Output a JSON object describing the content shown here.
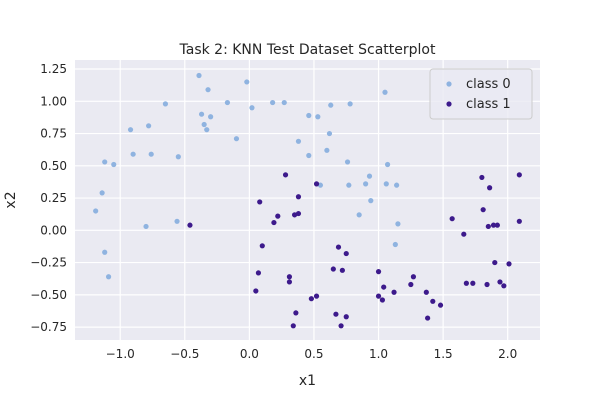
{
  "chart_data": {
    "type": "scatter",
    "title": "Task 2: KNN Test Dataset Scatterplot",
    "xlabel": "x1",
    "ylabel": "x2",
    "xlim": [
      -1.35,
      2.25
    ],
    "ylim": [
      -0.85,
      1.32
    ],
    "xticks": [
      -1.0,
      -0.5,
      0.0,
      0.5,
      1.0,
      1.5,
      2.0
    ],
    "xtick_labels": [
      "−1.0",
      "−0.5",
      "0.0",
      "0.5",
      "1.0",
      "1.5",
      "2.0"
    ],
    "yticks": [
      -0.75,
      -0.5,
      -0.25,
      0.0,
      0.25,
      0.5,
      0.75,
      1.0,
      1.25
    ],
    "ytick_labels": [
      "−0.75",
      "−0.50",
      "−0.25",
      "0.00",
      "0.25",
      "0.50",
      "0.75",
      "1.00",
      "1.25"
    ],
    "grid": true,
    "legend_position": "top-right",
    "background_color": "#eaeaf2",
    "grid_color": "#ffffff",
    "series": [
      {
        "name": "class 0",
        "color": "#8fb3e0",
        "points": [
          [
            -1.19,
            0.15
          ],
          [
            -1.14,
            0.29
          ],
          [
            -1.12,
            0.53
          ],
          [
            -1.12,
            -0.17
          ],
          [
            -1.09,
            -0.36
          ],
          [
            -1.05,
            0.51
          ],
          [
            -0.92,
            0.78
          ],
          [
            -0.9,
            0.59
          ],
          [
            -0.8,
            0.03
          ],
          [
            -0.78,
            0.81
          ],
          [
            -0.76,
            0.59
          ],
          [
            -0.65,
            0.98
          ],
          [
            -0.56,
            0.07
          ],
          [
            -0.55,
            0.57
          ],
          [
            -0.39,
            1.2
          ],
          [
            -0.37,
            0.9
          ],
          [
            -0.35,
            0.82
          ],
          [
            -0.33,
            0.78
          ],
          [
            -0.32,
            1.09
          ],
          [
            -0.3,
            0.88
          ],
          [
            -0.17,
            0.99
          ],
          [
            -0.1,
            0.71
          ],
          [
            -0.02,
            1.15
          ],
          [
            0.02,
            0.95
          ],
          [
            0.18,
            0.99
          ],
          [
            0.27,
            0.99
          ],
          [
            0.38,
            0.69
          ],
          [
            0.46,
            0.89
          ],
          [
            0.46,
            0.58
          ],
          [
            0.53,
            0.88
          ],
          [
            0.55,
            0.35
          ],
          [
            0.6,
            0.62
          ],
          [
            0.62,
            0.75
          ],
          [
            0.63,
            0.97
          ],
          [
            0.76,
            0.53
          ],
          [
            0.77,
            0.35
          ],
          [
            0.78,
            0.98
          ],
          [
            0.85,
            0.12
          ],
          [
            0.9,
            0.36
          ],
          [
            0.93,
            0.42
          ],
          [
            0.94,
            0.23
          ],
          [
            1.05,
            1.07
          ],
          [
            1.06,
            0.36
          ],
          [
            1.07,
            0.51
          ],
          [
            1.13,
            -0.11
          ],
          [
            1.14,
            0.35
          ],
          [
            1.15,
            0.05
          ]
        ]
      },
      {
        "name": "class 1",
        "color": "#3d1a8c",
        "points": [
          [
            -0.46,
            0.04
          ],
          [
            0.05,
            -0.47
          ],
          [
            0.07,
            -0.33
          ],
          [
            0.08,
            0.22
          ],
          [
            0.1,
            -0.12
          ],
          [
            0.19,
            0.06
          ],
          [
            0.22,
            0.11
          ],
          [
            0.28,
            0.43
          ],
          [
            0.31,
            -0.36
          ],
          [
            0.31,
            -0.4
          ],
          [
            0.34,
            -0.74
          ],
          [
            0.35,
            0.12
          ],
          [
            0.36,
            -0.64
          ],
          [
            0.38,
            0.13
          ],
          [
            0.38,
            0.26
          ],
          [
            0.48,
            -0.53
          ],
          [
            0.52,
            -0.51
          ],
          [
            0.52,
            0.36
          ],
          [
            0.65,
            -0.3
          ],
          [
            0.67,
            -0.65
          ],
          [
            0.69,
            -0.13
          ],
          [
            0.71,
            -0.74
          ],
          [
            0.72,
            -0.31
          ],
          [
            0.75,
            -0.18
          ],
          [
            0.75,
            -0.67
          ],
          [
            1.0,
            -0.32
          ],
          [
            1.0,
            -0.51
          ],
          [
            1.03,
            -0.54
          ],
          [
            1.04,
            -0.44
          ],
          [
            1.12,
            -0.48
          ],
          [
            1.25,
            -0.42
          ],
          [
            1.27,
            -0.36
          ],
          [
            1.37,
            -0.48
          ],
          [
            1.38,
            -0.68
          ],
          [
            1.42,
            -0.55
          ],
          [
            1.48,
            -0.58
          ],
          [
            1.57,
            0.09
          ],
          [
            1.66,
            -0.03
          ],
          [
            1.68,
            -0.41
          ],
          [
            1.73,
            -0.41
          ],
          [
            1.8,
            0.41
          ],
          [
            1.81,
            0.16
          ],
          [
            1.84,
            -0.42
          ],
          [
            1.85,
            0.03
          ],
          [
            1.86,
            0.33
          ],
          [
            1.89,
            0.04
          ],
          [
            1.9,
            -0.25
          ],
          [
            1.92,
            0.04
          ],
          [
            1.94,
            -0.4
          ],
          [
            1.97,
            -0.43
          ],
          [
            2.01,
            -0.26
          ],
          [
            2.09,
            0.43
          ],
          [
            2.09,
            0.07
          ]
        ]
      }
    ]
  }
}
